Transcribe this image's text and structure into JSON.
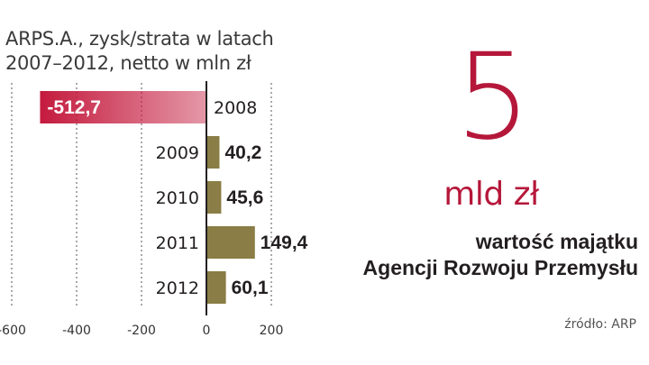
{
  "title_lines": [
    "ARPS.A., zysk/strata w latach",
    "2007–2012, netto w mln zł"
  ],
  "highlight": {
    "number": "5",
    "unit": "mld zł",
    "description_lines": [
      "wartość majątku",
      "Agencji Rozwoju Przemysłu"
    ]
  },
  "source": "źródło: ARP",
  "colors": {
    "negative_bar": "#c41a3d",
    "positive_bar": "#8a7d45",
    "accent": "#b5173a",
    "axis": "#231f20"
  },
  "chart_data": {
    "type": "bar",
    "orientation": "horizontal",
    "title": "ARPS.A., zysk/strata w latach 2007–2012, netto w mln zł",
    "categories": [
      "2008",
      "2009",
      "2010",
      "2011",
      "2012"
    ],
    "values": [
      -512.7,
      40.2,
      45.6,
      149.4,
      60.1
    ],
    "value_labels": [
      "-512,7",
      "40,2",
      "45,6",
      "149,4",
      "60,1"
    ],
    "xlim": [
      -600,
      200
    ],
    "xticks": [
      -600,
      -400,
      -200,
      0,
      200
    ],
    "xtick_labels": [
      "-600",
      "-400",
      "-200",
      "0",
      "200"
    ],
    "grid": "vertical dashed",
    "legend": "none"
  }
}
